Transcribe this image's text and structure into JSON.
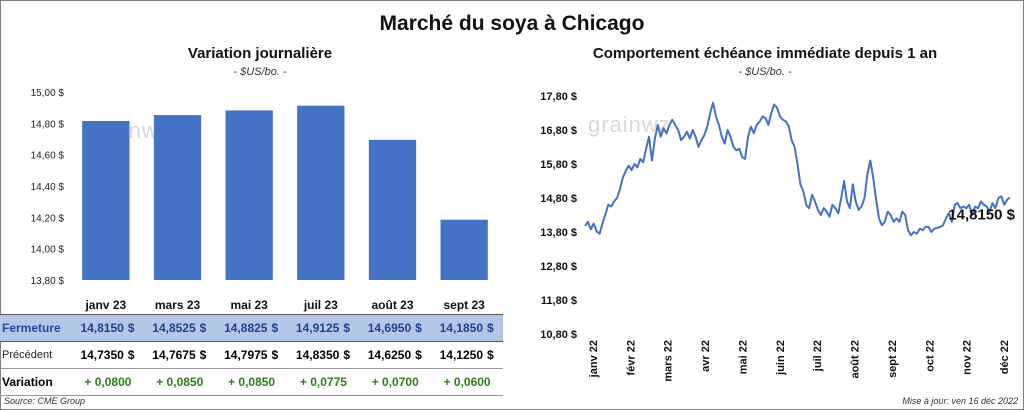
{
  "title": "Marché du soya à Chicago",
  "footer": {
    "source": "Source: CME Group",
    "updated": "Mise à jour: ven 16 déc 2022"
  },
  "watermark": "grainwz",
  "table": {
    "row_labels": [
      "Fermeture",
      "Précédent",
      "Variation"
    ],
    "currency": "$",
    "fermeture": [
      "14,8150",
      "14,8525",
      "14,8825",
      "14,9125",
      "14,6950",
      "14,1850"
    ],
    "precedent": [
      "14,7350",
      "14,7675",
      "14,7975",
      "14,8350",
      "14,6250",
      "14,1250"
    ],
    "variation": [
      "+ 0,0800",
      "+ 0,0850",
      "+ 0,0850",
      "+ 0,0775",
      "+ 0,0700",
      "+ 0,0600"
    ]
  },
  "chart_data": [
    {
      "type": "bar",
      "title": "Variation  journalière",
      "subtitle": "- $US/bo. -",
      "categories": [
        "janv 23",
        "mars 23",
        "mai 23",
        "juil 23",
        "août 23",
        "sept 23"
      ],
      "values": [
        14.815,
        14.8525,
        14.8825,
        14.9125,
        14.695,
        14.185
      ],
      "ylim": [
        13.8,
        15.0
      ],
      "yticks": [
        "13,80 $",
        "14,00 $",
        "14,20 $",
        "14,40 $",
        "14,60 $",
        "14,80 $",
        "15,00 $"
      ],
      "color": "#4472c4"
    },
    {
      "type": "line",
      "title": "Comportement  échéance immédiate depuis 1 an",
      "subtitle": "- $US/bo. -",
      "xticks": [
        "janv 22",
        "févr 22",
        "mars 22",
        "avr 22",
        "mai 22",
        "juin 22",
        "juil 22",
        "août 22",
        "sept 22",
        "oct 22",
        "nov 22",
        "déc 22"
      ],
      "yticks": [
        "10,80 $",
        "11,80 $",
        "12,80 $",
        "13,80 $",
        "14,80 $",
        "15,80 $",
        "16,80 $",
        "17,80 $"
      ],
      "ylim": [
        10.8,
        17.8
      ],
      "last_label": "14,8150 $",
      "color": "#4472c4",
      "series": [
        {
          "values": [
            13.98,
            14.1,
            13.88,
            14.05,
            13.82,
            13.75,
            14.05,
            14.32,
            14.6,
            14.55,
            14.7,
            14.8,
            15.05,
            15.4,
            15.6,
            15.75,
            15.62,
            15.8,
            15.7,
            15.95,
            15.85,
            16.25,
            16.6,
            15.9,
            16.55,
            16.95,
            16.6,
            16.85,
            16.7,
            16.95,
            17.1,
            16.95,
            16.8,
            16.5,
            16.6,
            16.75,
            16.55,
            16.8,
            16.6,
            16.3,
            16.5,
            16.65,
            16.9,
            17.3,
            17.6,
            17.2,
            16.95,
            16.6,
            16.4,
            16.8,
            16.6,
            16.3,
            16.2,
            16.25,
            16.0,
            15.95,
            16.6,
            16.9,
            16.7,
            16.95,
            17.05,
            17.2,
            17.15,
            16.95,
            17.3,
            17.55,
            17.45,
            17.2,
            17.1,
            17.05,
            16.9,
            16.5,
            16.3,
            15.8,
            15.2,
            15.0,
            14.6,
            14.5,
            14.9,
            14.7,
            14.45,
            14.3,
            14.5,
            14.4,
            14.25,
            14.6,
            14.5,
            14.35,
            14.8,
            15.3,
            14.7,
            14.5,
            15.2,
            14.7,
            14.45,
            14.55,
            14.8,
            15.5,
            15.9,
            15.4,
            14.75,
            14.2,
            14.0,
            14.1,
            14.4,
            14.3,
            14.1,
            14.2,
            14.1,
            14.4,
            14.3,
            13.85,
            13.7,
            13.8,
            13.75,
            13.9,
            13.85,
            13.95,
            13.95,
            13.8,
            13.9,
            13.92,
            13.95,
            14.0,
            14.2,
            14.35,
            14.1,
            14.6,
            14.65,
            14.5,
            14.55,
            14.5,
            14.6,
            14.3,
            14.55,
            14.5,
            14.7,
            14.6,
            14.55,
            14.4,
            14.65,
            14.5,
            14.8,
            14.85,
            14.6,
            14.75,
            14.815
          ]
        }
      ]
    }
  ]
}
